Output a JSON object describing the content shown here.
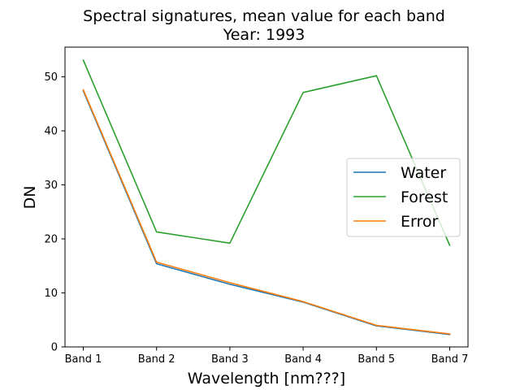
{
  "chart_data": {
    "type": "line",
    "title": "Spectral signatures, mean value for each band",
    "subtitle": "Year: 1993",
    "xlabel": "Wavelength [nm???]",
    "ylabel": "DN",
    "categories": [
      "Band 1",
      "Band 2",
      "Band 3",
      "Band 4",
      "Band 5",
      "Band 7"
    ],
    "yticks": [
      "0",
      "10",
      "20",
      "30",
      "40",
      "50"
    ],
    "ylim": [
      0,
      55.5
    ],
    "grid": false,
    "legend_position": "center-right",
    "series": [
      {
        "name": "Water",
        "color": "#1f77b4",
        "values": [
          47.4,
          15.4,
          11.6,
          8.3,
          3.9,
          2.3
        ]
      },
      {
        "name": "Forest",
        "color": "#2ca02c",
        "values": [
          53.1,
          21.3,
          19.2,
          47.1,
          50.2,
          18.8
        ]
      },
      {
        "name": "Error",
        "color": "#ff7f0e",
        "values": [
          47.6,
          15.7,
          11.9,
          8.4,
          4.0,
          2.4
        ]
      }
    ]
  }
}
